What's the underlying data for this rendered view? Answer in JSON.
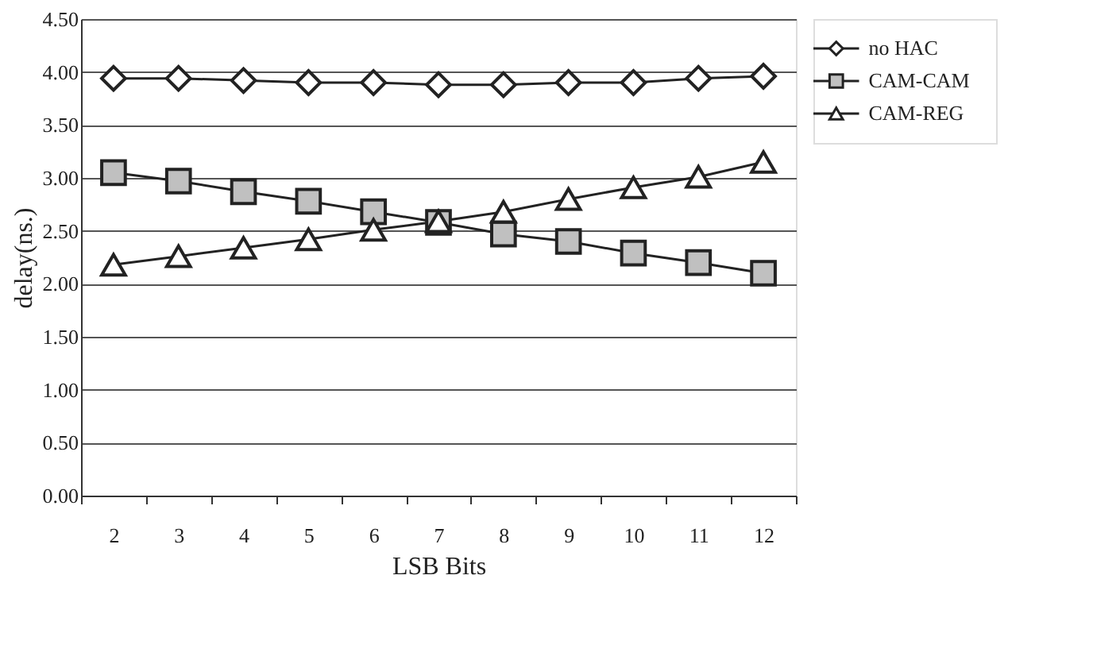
{
  "chart_data": {
    "type": "line",
    "xlabel": "LSB Bits",
    "ylabel": "delay(ns.)",
    "categories": [
      "2",
      "3",
      "4",
      "5",
      "6",
      "7",
      "8",
      "9",
      "10",
      "11",
      "12"
    ],
    "series": [
      {
        "name": "no HAC",
        "color": "#ffffff",
        "marker": "diamond",
        "values": [
          3.94,
          3.94,
          3.92,
          3.9,
          3.9,
          3.88,
          3.88,
          3.9,
          3.9,
          3.94,
          3.96
        ]
      },
      {
        "name": "CAM-CAM",
        "color": "#c0c0c0",
        "marker": "square",
        "values": [
          3.05,
          2.97,
          2.87,
          2.78,
          2.68,
          2.58,
          2.47,
          2.4,
          2.29,
          2.2,
          2.1
        ]
      },
      {
        "name": "CAM-REG",
        "color": "#ffffff",
        "marker": "triangle",
        "values": [
          2.18,
          2.26,
          2.34,
          2.42,
          2.51,
          2.59,
          2.68,
          2.8,
          2.91,
          3.01,
          3.15
        ]
      }
    ],
    "ylim": [
      0,
      4.5
    ],
    "yticks": [
      {
        "value": 0,
        "label": "0.00"
      },
      {
        "value": 0.5,
        "label": "0.50"
      },
      {
        "value": 1,
        "label": "1.00"
      },
      {
        "value": 1.5,
        "label": "1.50"
      },
      {
        "value": 2,
        "label": "2.00"
      },
      {
        "value": 2.5,
        "label": "2.50"
      },
      {
        "value": 3,
        "label": "3.00"
      },
      {
        "value": 3.5,
        "label": "3.50"
      },
      {
        "value": 4,
        "label": "4.00"
      },
      {
        "value": 4.5,
        "label": "4.50"
      }
    ],
    "grid": "y",
    "legend": "right",
    "line_style": "solid"
  }
}
